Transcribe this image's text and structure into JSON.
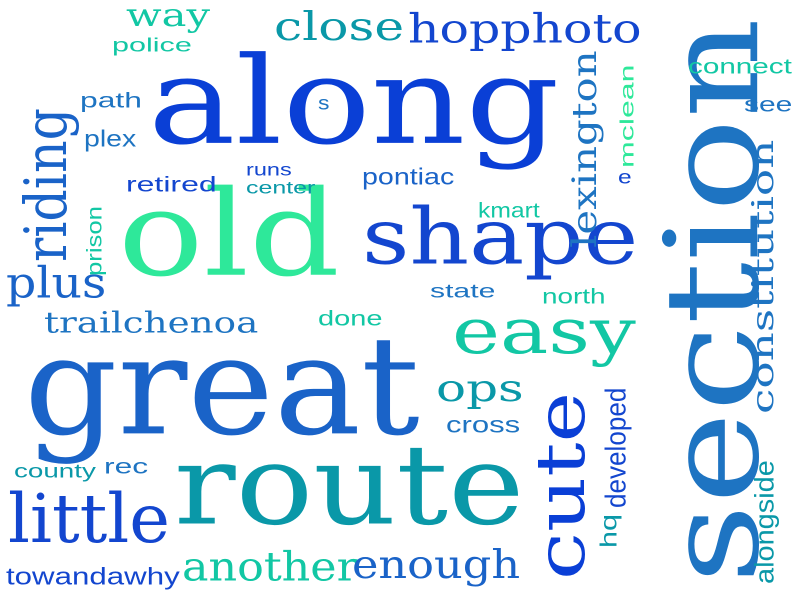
{
  "colors": {
    "deep_blue": "#0a3fd6",
    "royal_blue": "#1346cf",
    "mid_blue": "#1a63c8",
    "steel_blue": "#1e74c2",
    "teal": "#0a98a8",
    "sea_green": "#12c7a4",
    "mint": "#2ee89a",
    "navy": "#1a2fb0"
  },
  "words": [
    {
      "text": "along"
    },
    {
      "text": "section"
    },
    {
      "text": "great"
    },
    {
      "text": "old"
    },
    {
      "text": "route"
    },
    {
      "text": "shape"
    },
    {
      "text": "riding"
    },
    {
      "text": "little"
    },
    {
      "text": "easy"
    },
    {
      "text": "cute"
    },
    {
      "text": "another"
    },
    {
      "text": "enough"
    },
    {
      "text": "close"
    },
    {
      "text": "hopphoto"
    },
    {
      "text": "way"
    },
    {
      "text": "plus"
    },
    {
      "text": "trailchenoa"
    },
    {
      "text": "constitution"
    },
    {
      "text": "lexington"
    },
    {
      "text": "ops"
    },
    {
      "text": "police"
    },
    {
      "text": "path"
    },
    {
      "text": "plex"
    },
    {
      "text": "s"
    },
    {
      "text": "retired"
    },
    {
      "text": "runs"
    },
    {
      "text": "center"
    },
    {
      "text": "pontiac"
    },
    {
      "text": "prison"
    },
    {
      "text": "kmart"
    },
    {
      "text": "state"
    },
    {
      "text": "north"
    },
    {
      "text": "done"
    },
    {
      "text": "mclean"
    },
    {
      "text": "connect"
    },
    {
      "text": "see"
    },
    {
      "text": "e"
    },
    {
      "text": "cross"
    },
    {
      "text": "developed"
    },
    {
      "text": "county"
    },
    {
      "text": "rec"
    },
    {
      "text": "hq"
    },
    {
      "text": "towandawhy"
    },
    {
      "text": "alongside"
    }
  ]
}
